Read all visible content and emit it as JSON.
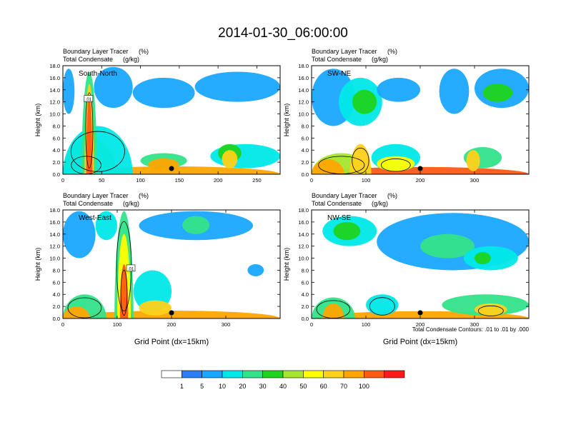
{
  "figure": {
    "title": "2014-01-30_06:00:00",
    "contour_note": "Total Condensate Contours: .01 to .01 by .000"
  },
  "colorbar": {
    "colors": [
      "#ffffff",
      "#2b7df5",
      "#19a7ff",
      "#00e8e8",
      "#33e38a",
      "#1ed41e",
      "#a6e62e",
      "#ffff00",
      "#ffd11a",
      "#ffa500",
      "#ff5a14",
      "#ff1a1a"
    ],
    "labels": [
      "1",
      "5",
      "10",
      "20",
      "30",
      "40",
      "50",
      "60",
      "70",
      "100"
    ]
  },
  "chart_data": [
    {
      "type": "heatmap",
      "panel_label": "South-North",
      "subtitle_line1": "Boundary Layer Tracer",
      "subtitle_unit1": "(%)",
      "subtitle_line2": "Total Condensate",
      "subtitle_unit2": "(g/kg)",
      "ylabel": "Height (km)",
      "xlabel": "",
      "xlim": [
        0,
        280
      ],
      "ylim": [
        0,
        18
      ],
      "xticks": [
        "0",
        "50",
        "100",
        "150",
        "200",
        "250"
      ],
      "xtick_values": [
        0,
        50,
        100,
        150,
        200,
        250
      ],
      "yticks": [
        "0.0",
        "2.0",
        "4.0",
        "6.0",
        "8.0",
        "10.0",
        "12.0",
        "14.0",
        "16.0",
        "18.0"
      ],
      "marker_x": 140,
      "contour_label": ".01",
      "contour_label_at": [
        33,
        12.5
      ],
      "blobs": [
        {
          "x": [
            2,
            280
          ],
          "y": [
            0,
            1.3
          ],
          "level": 9
        },
        {
          "x": [
            5,
            55
          ],
          "y": [
            0,
            3.5
          ],
          "level": 10
        },
        {
          "x": [
            0,
            70
          ],
          "y": [
            0,
            6
          ],
          "level": 6
        },
        {
          "x": [
            0,
            90
          ],
          "y": [
            0,
            8
          ],
          "level": 3
        },
        {
          "x": [
            24,
            44
          ],
          "y": [
            0,
            17
          ],
          "level": 4
        },
        {
          "x": [
            28,
            40
          ],
          "y": [
            0,
            15
          ],
          "level": 8
        },
        {
          "x": [
            30,
            38
          ],
          "y": [
            0,
            13
          ],
          "level": 10
        },
        {
          "x": [
            0,
            15
          ],
          "y": [
            10,
            17.5
          ],
          "level": 2
        },
        {
          "x": [
            40,
            90
          ],
          "y": [
            11,
            17.8
          ],
          "level": 2
        },
        {
          "x": [
            90,
            170
          ],
          "y": [
            11,
            16
          ],
          "level": 2
        },
        {
          "x": [
            170,
            280
          ],
          "y": [
            12,
            17
          ],
          "level": 2
        },
        {
          "x": [
            100,
            160
          ],
          "y": [
            1,
            3.5
          ],
          "level": 4
        },
        {
          "x": [
            110,
            150
          ],
          "y": [
            0.6,
            2.6
          ],
          "level": 9
        },
        {
          "x": [
            190,
            280
          ],
          "y": [
            1,
            5
          ],
          "level": 3
        },
        {
          "x": [
            200,
            230
          ],
          "y": [
            2,
            5
          ],
          "level": 5
        },
        {
          "x": [
            205,
            225
          ],
          "y": [
            1,
            4
          ],
          "level": 8
        }
      ]
    },
    {
      "type": "heatmap",
      "panel_label": "SW-NE",
      "subtitle_line1": "Boundary Layer Tracer",
      "subtitle_unit1": "(%)",
      "subtitle_line2": "Total Condensate",
      "subtitle_unit2": "(g/kg)",
      "ylabel": "Height (km)",
      "xlabel": "",
      "xlim": [
        0,
        400
      ],
      "ylim": [
        0,
        18
      ],
      "xticks": [
        "0",
        "100",
        "200",
        "300"
      ],
      "xtick_values": [
        0,
        100,
        200,
        300
      ],
      "yticks": [
        "0.0",
        "2.0",
        "4.0",
        "6.0",
        "8.0",
        "10.0",
        "12.0",
        "14.0",
        "16.0",
        "18.0"
      ],
      "marker_x": 200,
      "contour_label": "",
      "contour_label_at": [
        0,
        0
      ],
      "blobs": [
        {
          "x": [
            2,
            400
          ],
          "y": [
            0,
            1.2
          ],
          "level": 10
        },
        {
          "x": [
            0,
            110
          ],
          "y": [
            0,
            3.5
          ],
          "level": 6
        },
        {
          "x": [
            0,
            60
          ],
          "y": [
            0,
            2.5
          ],
          "level": 9
        },
        {
          "x": [
            70,
            110
          ],
          "y": [
            0,
            5
          ],
          "level": 8
        },
        {
          "x": [
            110,
            200
          ],
          "y": [
            0.5,
            5
          ],
          "level": 3
        },
        {
          "x": [
            120,
            190
          ],
          "y": [
            0.5,
            3
          ],
          "level": 7
        },
        {
          "x": [
            280,
            350
          ],
          "y": [
            1,
            4.5
          ],
          "level": 4
        },
        {
          "x": [
            285,
            310
          ],
          "y": [
            0.5,
            4
          ],
          "level": 8
        },
        {
          "x": [
            0,
            80
          ],
          "y": [
            8,
            17.5
          ],
          "level": 2
        },
        {
          "x": [
            50,
            130
          ],
          "y": [
            8,
            16
          ],
          "level": 3
        },
        {
          "x": [
            75,
            120
          ],
          "y": [
            10,
            14
          ],
          "level": 5
        },
        {
          "x": [
            120,
            200
          ],
          "y": [
            12,
            16
          ],
          "level": 2
        },
        {
          "x": [
            235,
            290
          ],
          "y": [
            10,
            17.5
          ],
          "level": 2
        },
        {
          "x": [
            300,
            400
          ],
          "y": [
            11,
            17.5
          ],
          "level": 2
        },
        {
          "x": [
            315,
            370
          ],
          "y": [
            12,
            15
          ],
          "level": 5
        }
      ]
    },
    {
      "type": "heatmap",
      "panel_label": "West-East",
      "subtitle_line1": "Boundary Layer Tracer",
      "subtitle_unit1": "(%)",
      "subtitle_line2": "Total Condensate",
      "subtitle_unit2": "(g/kg)",
      "ylabel": "Height (km)",
      "xlabel": "Grid Point (dx=15km)",
      "xlim": [
        0,
        400
      ],
      "ylim": [
        0,
        18
      ],
      "xticks": [
        "0",
        "100",
        "200",
        "300"
      ],
      "xtick_values": [
        0,
        100,
        200,
        300
      ],
      "yticks": [
        "0.0",
        "2.0",
        "4.0",
        "6.0",
        "8.0",
        "10.0",
        "12.0",
        "14.0",
        "16.0",
        "18.0"
      ],
      "marker_x": 200,
      "contour_label": ".01",
      "contour_label_at": [
        125,
        8.3
      ],
      "blobs": [
        {
          "x": [
            2,
            400
          ],
          "y": [
            0,
            1.3
          ],
          "level": 9
        },
        {
          "x": [
            0,
            80
          ],
          "y": [
            0,
            4
          ],
          "level": 4
        },
        {
          "x": [
            0,
            50
          ],
          "y": [
            0,
            2
          ],
          "level": 9
        },
        {
          "x": [
            95,
            130
          ],
          "y": [
            0,
            17.8
          ],
          "level": 4
        },
        {
          "x": [
            100,
            125
          ],
          "y": [
            0,
            14
          ],
          "level": 7
        },
        {
          "x": [
            105,
            120
          ],
          "y": [
            0,
            9
          ],
          "level": 10
        },
        {
          "x": [
            130,
            200
          ],
          "y": [
            1,
            8
          ],
          "level": 3
        },
        {
          "x": [
            140,
            200
          ],
          "y": [
            0.5,
            3
          ],
          "level": 8
        },
        {
          "x": [
            0,
            60
          ],
          "y": [
            10,
            17.8
          ],
          "level": 2
        },
        {
          "x": [
            60,
            100
          ],
          "y": [
            13,
            17.8
          ],
          "level": 3
        },
        {
          "x": [
            140,
            350
          ],
          "y": [
            13,
            17.8
          ],
          "level": 2
        },
        {
          "x": [
            220,
            270
          ],
          "y": [
            14,
            17
          ],
          "level": 4
        },
        {
          "x": [
            340,
            370
          ],
          "y": [
            7,
            9
          ],
          "level": 2
        }
      ]
    },
    {
      "type": "heatmap",
      "panel_label": "NW-SE",
      "subtitle_line1": "Boundary Layer Tracer",
      "subtitle_unit1": "(%)",
      "subtitle_line2": "Total Condensate",
      "subtitle_unit2": "(g/kg)",
      "ylabel": "Height (km)",
      "xlabel": "Grid Point (dx=15km)",
      "xlim": [
        0,
        400
      ],
      "ylim": [
        0,
        18
      ],
      "xticks": [
        "0",
        "100",
        "200",
        "300"
      ],
      "xtick_values": [
        0,
        100,
        200,
        300
      ],
      "yticks": [
        "0.0",
        "2.0",
        "4.0",
        "6.0",
        "8.0",
        "10.0",
        "12.0",
        "14.0",
        "16.0",
        "18.0"
      ],
      "marker_x": 200,
      "contour_label": "",
      "contour_label_at": [
        0,
        0
      ],
      "blobs": [
        {
          "x": [
            2,
            400
          ],
          "y": [
            0,
            1.2
          ],
          "level": 9
        },
        {
          "x": [
            0,
            80
          ],
          "y": [
            0,
            3.5
          ],
          "level": 4
        },
        {
          "x": [
            20,
            60
          ],
          "y": [
            0,
            2.5
          ],
          "level": 9
        },
        {
          "x": [
            100,
            160
          ],
          "y": [
            0.5,
            4
          ],
          "level": 3
        },
        {
          "x": [
            240,
            400
          ],
          "y": [
            0.5,
            4
          ],
          "level": 4
        },
        {
          "x": [
            300,
            360
          ],
          "y": [
            0.5,
            2.5
          ],
          "level": 8
        },
        {
          "x": [
            20,
            120
          ],
          "y": [
            12,
            17
          ],
          "level": 3
        },
        {
          "x": [
            40,
            90
          ],
          "y": [
            13,
            16
          ],
          "level": 5
        },
        {
          "x": [
            120,
            400
          ],
          "y": [
            8,
            17.5
          ],
          "level": 2
        },
        {
          "x": [
            200,
            300
          ],
          "y": [
            10,
            14
          ],
          "level": 4
        },
        {
          "x": [
            280,
            380
          ],
          "y": [
            8,
            12
          ],
          "level": 3
        },
        {
          "x": [
            300,
            330
          ],
          "y": [
            9,
            11
          ],
          "level": 5
        }
      ]
    }
  ]
}
